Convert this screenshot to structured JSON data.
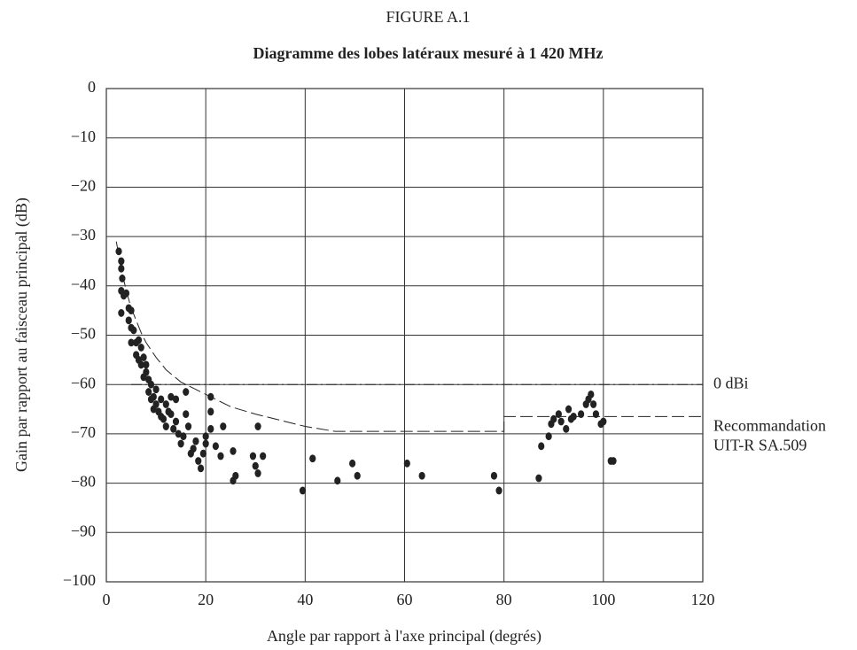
{
  "chart_data": {
    "type": "scatter",
    "figure_label": "FIGURE A.1",
    "title": "Diagramme des lobes latéraux mesuré à 1 420 MHz",
    "x_label": "Angle par rapport à l'axe principal (degrés)",
    "y_label": "Gain par rapport au faisceau principal (dB)",
    "xlim": [
      0,
      120
    ],
    "ylim": [
      -100,
      0
    ],
    "xticks": [
      0,
      20,
      40,
      60,
      80,
      100,
      120
    ],
    "yticks": [
      0,
      {
        "value": -10,
        "label": "−10"
      },
      {
        "value": -20,
        "label": "−20"
      },
      {
        "value": -30,
        "label": "−30"
      },
      {
        "value": -40,
        "label": "−40"
      },
      {
        "value": -50,
        "label": "−50"
      },
      {
        "value": -60,
        "label": "−60"
      },
      {
        "value": -70,
        "label": "−70"
      },
      {
        "value": -80,
        "label": "−80"
      },
      {
        "value": -90,
        "label": "−90"
      },
      {
        "value": -100,
        "label": "−100"
      }
    ],
    "grid": true,
    "points": {
      "color": "#222222",
      "x": [
        2.5,
        3,
        3,
        3.2,
        3,
        3.5,
        3,
        4,
        4.5,
        5,
        4.5,
        5,
        5.5,
        5,
        6,
        6.5,
        7,
        6,
        6.5,
        7,
        7.5,
        8,
        8,
        7.5,
        8.5,
        9,
        8.5,
        9,
        9.5,
        10,
        10,
        10.5,
        11,
        11,
        11.5,
        12,
        12,
        12.5,
        13,
        13.5,
        14,
        14.5,
        15,
        15.5,
        16,
        16.5,
        17,
        17.5,
        18,
        18.5,
        19,
        19.5,
        20,
        20,
        21,
        21,
        21,
        22,
        23,
        23.5,
        25.5,
        25.5,
        26,
        29.5,
        30,
        30.5,
        30.5,
        31.5,
        39.5,
        41.5,
        46.5,
        49.5,
        50.5,
        60.5,
        63.5,
        78,
        79,
        87,
        87.5,
        89,
        89.5,
        90,
        91,
        91.5,
        92.5,
        93,
        93.5,
        94,
        95.5,
        96.5,
        97,
        97.5,
        98,
        98.5,
        99.5,
        100,
        101.5,
        102,
        14,
        16,
        13,
        9.5
      ],
      "y": [
        -33,
        -35,
        -36.5,
        -38.5,
        -41,
        -42,
        -45.5,
        -41.5,
        -44.5,
        -45,
        -47,
        -48.5,
        -49,
        -51.5,
        -51.5,
        -51,
        -52.5,
        -54,
        -55,
        -56,
        -54.5,
        -56,
        -57.5,
        -58.5,
        -59,
        -60,
        -61.5,
        -63,
        -62.5,
        -61,
        -64,
        -65.5,
        -63,
        -66.5,
        -67,
        -64,
        -68.5,
        -65.5,
        -66,
        -69,
        -67.5,
        -70,
        -72,
        -70.5,
        -66,
        -68.5,
        -74,
        -73,
        -71.5,
        -75.5,
        -77,
        -74,
        -72,
        -70.5,
        -69,
        -65.5,
        -62.5,
        -72.5,
        -74.5,
        -68.5,
        -73.5,
        -79.5,
        -78.5,
        -74.5,
        -76.5,
        -78,
        -68.5,
        -74.5,
        -81.5,
        -75,
        -79.5,
        -76,
        -78.5,
        -76,
        -78.5,
        -78.5,
        -81.5,
        -79,
        -72.5,
        -70.5,
        -68,
        -67,
        -66,
        -67.5,
        -69,
        -65,
        -67,
        -66.5,
        -66,
        -64,
        -63,
        -62,
        -64,
        -66,
        -68,
        -67.5,
        -75.5,
        -75.5,
        -63,
        -61.5,
        -62.5,
        -65
      ]
    },
    "lines": [
      {
        "label": [
          "0 dBi"
        ],
        "style": "dashdot",
        "x": [
          5,
          120
        ],
        "y": [
          -60,
          -60
        ]
      },
      {
        "label": [
          "Recommandation",
          "UIT-R SA.509"
        ],
        "style": "dashed",
        "x": [
          2,
          3,
          4,
          5,
          6,
          7,
          8,
          10,
          12,
          15,
          20,
          25,
          30,
          36,
          40,
          46,
          48,
          80,
          80,
          120
        ],
        "y": [
          -31,
          -36.5,
          -41,
          -44.5,
          -47,
          -49.5,
          -51.5,
          -54.5,
          -57,
          -59.5,
          -62,
          -64.5,
          -66,
          -67.5,
          -68.5,
          -69.5,
          -69.5,
          -69.5,
          -66.5,
          -66.5
        ]
      }
    ]
  }
}
